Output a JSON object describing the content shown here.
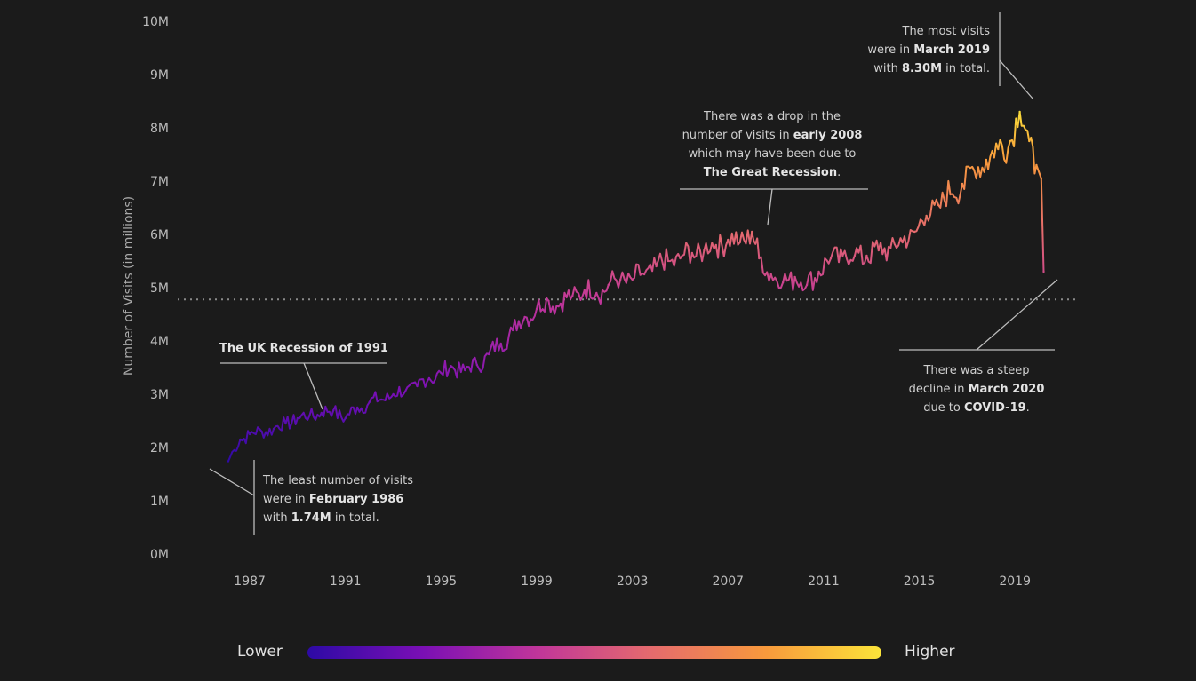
{
  "colors": {
    "background": "#1b1b1b",
    "gradient": [
      "#2d0aa5",
      "#7a0fb5",
      "#c0359a",
      "#e56b6d",
      "#f89a3c",
      "#fbe43a"
    ],
    "reference_line": "#8a8a8a",
    "annotation_line": "#bdbdbd"
  },
  "legend": {
    "low_label": "Lower",
    "high_label": "Higher"
  },
  "annotations": {
    "min": {
      "line1": "The least number of visits",
      "line2_pre": "were in ",
      "line2_bold": "February 1986",
      "line3_pre": "with ",
      "line3_bold": "1.74M",
      "line3_post": " in total."
    },
    "uk_recession": {
      "title": "The UK Recession of 1991"
    },
    "recession_2008": {
      "line1": "There was a drop in the",
      "line2_pre": "number of visits in ",
      "line2_bold": "early 2008",
      "line3": "which may have been due to",
      "line4_bold": "The Great Recession",
      "line4_post": "."
    },
    "max": {
      "line1": "The most visits",
      "line2_pre": "were in ",
      "line2_bold": "March 2019",
      "line3_pre": "with ",
      "line3_bold": "8.30M",
      "line3_post": " in total."
    },
    "covid": {
      "line1": "There was a steep",
      "line2_pre": "decline in ",
      "line2_bold": "March 2020",
      "line3_pre": "due to ",
      "line3_bold": "COVID-19",
      "line3_post": "."
    }
  },
  "chart_data": {
    "type": "line",
    "title": "",
    "ylabel": "Number of Visits (in millions)",
    "xlabel": "",
    "ylim": [
      0,
      10
    ],
    "xlim": [
      1985.1,
      2021.0
    ],
    "y_ticks": [
      "0M",
      "1M",
      "2M",
      "3M",
      "4M",
      "5M",
      "6M",
      "7M",
      "8M",
      "9M",
      "10M"
    ],
    "x_ticks": [
      "1987",
      "1991",
      "1995",
      "1999",
      "2003",
      "2007",
      "2011",
      "2015",
      "2019"
    ],
    "reference_line_y": 4.78,
    "grid": false,
    "color_encoding": "value (Lower to Higher)",
    "series": [
      {
        "x": [
          1986.1,
          1986.35,
          1986.6,
          1987.0,
          1987.5,
          1988.0,
          1988.5,
          1989.0,
          1989.5,
          1990.0,
          1990.5,
          1991.0,
          1991.5,
          1992.0,
          1992.5,
          1993.0,
          1993.5,
          1994.0,
          1994.5,
          1995.0,
          1995.5,
          1996.0,
          1996.5,
          1997.0,
          1997.5,
          1998.0,
          1998.5,
          1999.0,
          1999.5,
          2000.0,
          2000.5,
          2001.0,
          2001.5,
          2002.0,
          2002.5,
          2003.0,
          2003.5,
          2004.0,
          2004.5,
          2005.0,
          2005.5,
          2006.0,
          2006.5,
          2007.0,
          2007.5,
          2008.0,
          2008.3,
          2008.8,
          2009.3,
          2009.8,
          2010.3,
          2010.8,
          2011.3,
          2011.8,
          2012.3,
          2012.8,
          2013.3,
          2013.8,
          2014.3,
          2014.8,
          2015.3,
          2015.8,
          2016.3,
          2016.8,
          2017.3,
          2017.8,
          2018.3,
          2018.8,
          2019.2,
          2019.6,
          2019.9,
          2020.1,
          2020.2
        ],
        "y": [
          1.74,
          1.95,
          2.15,
          2.25,
          2.3,
          2.35,
          2.45,
          2.55,
          2.6,
          2.65,
          2.7,
          2.55,
          2.75,
          2.85,
          2.9,
          3.0,
          3.05,
          3.15,
          3.3,
          3.4,
          3.5,
          3.45,
          3.55,
          3.75,
          3.95,
          4.2,
          4.45,
          4.6,
          4.75,
          4.7,
          4.85,
          4.95,
          4.9,
          5.05,
          5.15,
          5.15,
          5.25,
          5.4,
          5.5,
          5.55,
          5.65,
          5.7,
          5.8,
          5.9,
          5.85,
          6.05,
          5.55,
          5.25,
          5.1,
          5.2,
          5.05,
          5.3,
          5.55,
          5.6,
          5.6,
          5.6,
          5.7,
          5.75,
          5.85,
          6.05,
          6.35,
          6.55,
          6.75,
          6.95,
          7.2,
          7.4,
          7.6,
          7.75,
          8.3,
          7.75,
          7.3,
          7.05,
          5.3
        ]
      }
    ]
  }
}
